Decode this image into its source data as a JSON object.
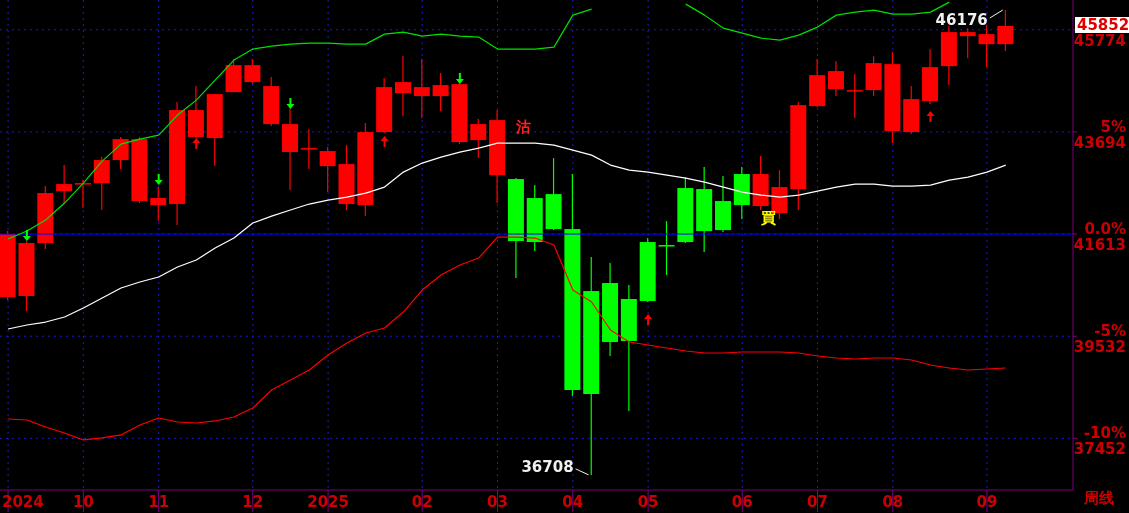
{
  "chart_data": {
    "type": "candlestick",
    "x": [
      "2024-09-06",
      "2024-09-13",
      "2024-09-20",
      "2024-09-27",
      "2024-10-04",
      "2024-10-11",
      "2024-10-18",
      "2024-10-25",
      "2024-11-01",
      "2024-11-08",
      "2024-11-15",
      "2024-11-22",
      "2024-11-29",
      "2024-12-06",
      "2024-12-13",
      "2024-12-20",
      "2024-12-27",
      "2025-01-03",
      "2025-01-10",
      "2025-01-17",
      "2025-01-24",
      "2025-01-31",
      "2025-02-07",
      "2025-02-14",
      "2025-02-21",
      "2025-02-28",
      "2025-03-07",
      "2025-03-14",
      "2025-03-21",
      "2025-03-28",
      "2025-04-04",
      "2025-04-11",
      "2025-04-18",
      "2025-04-25",
      "2025-05-02",
      "2025-05-09",
      "2025-05-16",
      "2025-05-23",
      "2025-05-30",
      "2025-06-06",
      "2025-06-13",
      "2025-06-20",
      "2025-06-27",
      "2025-07-04",
      "2025-07-11",
      "2025-07-18",
      "2025-07-25",
      "2025-08-01",
      "2025-08-08",
      "2025-08-15",
      "2025-08-22",
      "2025-08-29",
      "2025-09-05",
      "2025-09-12"
    ],
    "ohlc": [
      [
        40330,
        41674,
        40269,
        41613
      ],
      [
        40351,
        41470,
        40045,
        41430
      ],
      [
        41430,
        42590,
        41308,
        42448
      ],
      [
        42488,
        43018,
        42224,
        42631
      ],
      [
        42651,
        42712,
        42142,
        42651
      ],
      [
        42651,
        43181,
        42102,
        43120
      ],
      [
        43120,
        43588,
        42936,
        43547
      ],
      [
        42285,
        43588,
        42244,
        43547
      ],
      [
        42203,
        42570,
        41878,
        42346
      ],
      [
        42224,
        44301,
        41796,
        44138
      ],
      [
        43588,
        44626,
        43568,
        44138
      ],
      [
        43568,
        44463,
        42997,
        44463
      ],
      [
        44504,
        45176,
        44504,
        45054
      ],
      [
        44708,
        45176,
        44667,
        45054
      ],
      [
        43853,
        44810,
        43812,
        44626
      ],
      [
        43283,
        44178,
        42509,
        43853
      ],
      [
        43364,
        43751,
        42936,
        43364
      ],
      [
        42997,
        43384,
        42468,
        43303
      ],
      [
        42224,
        43425,
        42102,
        43038
      ],
      [
        42203,
        43873,
        41979,
        43690
      ],
      [
        43690,
        44789,
        43670,
        44606
      ],
      [
        44484,
        45237,
        44015,
        44708
      ],
      [
        44423,
        45176,
        43975,
        44606
      ],
      [
        44423,
        44891,
        44117,
        44647
      ],
      [
        43486,
        44687,
        43445,
        44667
      ],
      [
        43527,
        43954,
        43160,
        43853
      ],
      [
        42814,
        44138,
        42244,
        43934
      ],
      [
        42733,
        42753,
        40717,
        41470
      ],
      [
        42346,
        42611,
        41267,
        41450
      ],
      [
        42427,
        43160,
        41695,
        41715
      ],
      [
        41715,
        42835,
        38315,
        38437
      ],
      [
        40452,
        41145,
        36708,
        38355
      ],
      [
        40615,
        41023,
        39129,
        39414
      ],
      [
        40290,
        40575,
        38009,
        39435
      ],
      [
        41450,
        41531,
        40229,
        40249
      ],
      [
        41389,
        41878,
        40778,
        41389
      ],
      [
        42550,
        42774,
        41430,
        41450
      ],
      [
        42529,
        42977,
        41247,
        41674
      ],
      [
        42285,
        42794,
        41654,
        41694
      ],
      [
        42835,
        42977,
        41918,
        42203
      ],
      [
        42183,
        43201,
        42102,
        42835
      ],
      [
        42041,
        42916,
        41918,
        42570
      ],
      [
        42529,
        44301,
        42102,
        44239
      ],
      [
        44219,
        45176,
        44199,
        44850
      ],
      [
        44565,
        45135,
        44423,
        44932
      ],
      [
        44545,
        44871,
        43975,
        44545
      ],
      [
        44545,
        45237,
        44423,
        45095
      ],
      [
        43710,
        45318,
        43466,
        45074
      ],
      [
        43690,
        44626,
        43649,
        44362
      ],
      [
        44321,
        45379,
        44260,
        45013
      ],
      [
        45033,
        45848,
        44647,
        45726
      ],
      [
        45644,
        45807,
        45196,
        45726
      ],
      [
        45481,
        45868,
        45013,
        45685
      ],
      [
        45481,
        46176,
        45339,
        45852
      ]
    ],
    "colors": [
      "#ff0000",
      "#ff0000",
      "#ff0000",
      "#ff0000",
      "#ff0000",
      "#ff0000",
      "#ff0000",
      "#ff0000",
      "#ff0000",
      "#ff0000",
      "#ff0000",
      "#ff0000",
      "#ff0000",
      "#ff0000",
      "#ff0000",
      "#ff0000",
      "#ff0000",
      "#ff0000",
      "#ff0000",
      "#ff0000",
      "#ff0000",
      "#ff0000",
      "#ff0000",
      "#ff0000",
      "#ff0000",
      "#ff0000",
      "#ff0000",
      "#00ff00",
      "#00ff00",
      "#00ff00",
      "#00ff00",
      "#00ff00",
      "#00ff00",
      "#00ff00",
      "#00ff00",
      "#00ff00",
      "#00ff00",
      "#00ff00",
      "#00ff00",
      "#00ff00",
      "#ff0000",
      "#ff0000",
      "#ff0000",
      "#ff0000",
      "#ff0000",
      "#ff0000",
      "#ff0000",
      "#ff0000",
      "#ff0000",
      "#ff0000",
      "#ff0000",
      "#ff0000",
      "#ff0000",
      "#ff0000"
    ],
    "series": [
      {
        "type": "line",
        "color": "#00e000",
        "values": [
          41511,
          41674,
          41898,
          42244,
          42651,
          43099,
          43445,
          43547,
          43629,
          44036,
          44341,
          44748,
          45156,
          45380,
          45441,
          45481,
          45502,
          45502,
          45481,
          45481,
          45685,
          45726,
          45644,
          45685,
          45644,
          45624,
          45380,
          45380,
          45380,
          45420,
          46072,
          46194,
          null,
          null,
          null,
          null,
          46296,
          46072,
          45807,
          45705,
          45603,
          45563,
          45665,
          45828,
          46072,
          46133,
          46174,
          46092,
          46092,
          46133,
          46337,
          null,
          null,
          null
        ]
      },
      {
        "type": "line",
        "color": "#ffffff",
        "values": [
          39679,
          39760,
          39821,
          39923,
          40106,
          40310,
          40514,
          40636,
          40738,
          40941,
          41084,
          41328,
          41532,
          41837,
          41979,
          42102,
          42224,
          42305,
          42366,
          42448,
          42570,
          42875,
          43059,
          43181,
          43283,
          43364,
          43466,
          43466,
          43466,
          43425,
          43323,
          43221,
          43018,
          42916,
          42875,
          42814,
          42753,
          42672,
          42570,
          42468,
          42407,
          42366,
          42407,
          42488,
          42570,
          42631,
          42631,
          42590,
          42590,
          42611,
          42712,
          42774,
          42875,
          43018
        ]
      },
      {
        "type": "scatter",
        "color": "#00ff00",
        "marker": "triangle",
        "values": [
          null,
          41572,
          null,
          null,
          null,
          null,
          null,
          null,
          42712,
          null,
          null,
          null,
          null,
          null,
          null,
          44260,
          null,
          null,
          null,
          null,
          null,
          null,
          null,
          null,
          44769,
          null,
          null,
          null,
          null,
          null,
          null,
          null,
          null,
          null,
          null,
          null,
          null,
          null,
          null,
          null,
          null,
          null,
          null,
          null,
          null,
          null,
          null,
          null,
          null,
          null,
          null,
          null,
          null,
          null
        ]
      },
      {
        "type": "scatter",
        "color": "#ff0000",
        "marker": "triangle",
        "values": [
          null,
          null,
          null,
          null,
          null,
          null,
          null,
          null,
          null,
          null,
          43466,
          null,
          null,
          null,
          null,
          null,
          null,
          null,
          null,
          null,
          43507,
          null,
          null,
          null,
          null,
          null,
          null,
          null,
          null,
          null,
          null,
          null,
          null,
          null,
          39882,
          null,
          null,
          null,
          null,
          null,
          null,
          null,
          null,
          null,
          null,
          null,
          null,
          null,
          null,
          44015,
          null,
          null,
          null,
          null
        ]
      },
      {
        "type": "line",
        "color": "#ff0000",
        "values": [
          37846,
          37826,
          37684,
          37561,
          37419,
          37460,
          37521,
          37724,
          37867,
          37785,
          37765,
          37806,
          37887,
          38070,
          38437,
          38641,
          38844,
          39149,
          39394,
          39597,
          39699,
          40025,
          40473,
          40778,
          40982,
          41124,
          41552,
          41552,
          41532,
          41389,
          40473,
          40229,
          39659,
          39414,
          39353,
          39292,
          39231,
          39190,
          39190,
          39211,
          39211,
          39211,
          39190,
          39129,
          39088,
          39068,
          39088,
          39088,
          39048,
          38946,
          38885,
          38844,
          38864,
          38885
        ]
      }
    ],
    "xlim": [
      "2024-09-03",
      "2025-10-07"
    ],
    "xticks": [
      {
        "value": "2024-09-06",
        "label": "2024"
      },
      {
        "value": "2024-10-04",
        "label": "10"
      },
      {
        "value": "2024-11-01",
        "label": "11"
      },
      {
        "value": "2024-12-06",
        "label": "12"
      },
      {
        "value": "2025-01-03",
        "label": "2025"
      },
      {
        "value": "2025-02-07",
        "label": "02"
      },
      {
        "value": "2025-03-07",
        "label": "03"
      },
      {
        "value": "2025-04-04",
        "label": "04"
      },
      {
        "value": "2025-05-02",
        "label": "05"
      },
      {
        "value": "2025-06-06",
        "label": "06"
      },
      {
        "value": "2025-07-04",
        "label": "07"
      },
      {
        "value": "2025-08-01",
        "label": "08"
      },
      {
        "value": "2025-09-05",
        "label": "09"
      }
    ],
    "ylim": [
      36400,
      46380
    ],
    "yticks": [
      37452,
      39532,
      41613,
      43694,
      45774
    ],
    "y2lim": [
      -12.528,
      11.456
    ],
    "y2ticks": [
      {
        "value": 5,
        "label": "5%"
      },
      {
        "value": 0,
        "label": "0.0%"
      },
      {
        "value": -5,
        "label": "-5%"
      },
      {
        "value": -10,
        "label": "-10%"
      }
    ],
    "grid": true,
    "ref_lines": [
      {
        "axis": "y2",
        "value": 0,
        "color": "#0000ff",
        "line_style": "solid"
      }
    ],
    "annotations": [
      {
        "text": "36708",
        "x": "2025-04-11",
        "y": 36708
      },
      {
        "text": "46176",
        "x": "2025-09-12",
        "y": 46176
      },
      "45852",
      "沽",
      "買",
      "周线"
    ]
  }
}
